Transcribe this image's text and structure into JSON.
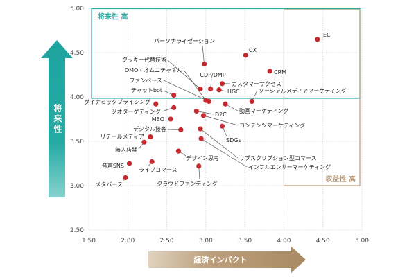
{
  "chart_data": {
    "type": "scatter",
    "xlabel": "経済インパクト",
    "ylabel": "将来性",
    "xlim": [
      1.5,
      5.0
    ],
    "ylim": [
      2.5,
      5.0
    ],
    "x_ticks": [
      "1.50",
      "2.00",
      "2.50",
      "3.00",
      "3.50",
      "4.00",
      "4.50",
      "5.00"
    ],
    "y_ticks": [
      "2.50",
      "3.00",
      "3.50",
      "4.00",
      "4.50",
      "5.00"
    ],
    "grid": true,
    "point_color": "#c62a2f",
    "regions": [
      {
        "label": "将来性 高",
        "x": [
          1.5,
          5.0
        ],
        "y": [
          4.0,
          5.0
        ],
        "color": "#2aa9a3"
      },
      {
        "label": "収益性 高",
        "x": [
          4.0,
          5.0
        ],
        "y": [
          3.0,
          5.0
        ],
        "color": "#b89b78"
      }
    ],
    "points": [
      {
        "label": "EC",
        "x": 4.43,
        "y": 4.65
      },
      {
        "label": "CX",
        "x": 3.51,
        "y": 4.47
      },
      {
        "label": "パーソナライゼーション",
        "x": 2.98,
        "y": 4.37
      },
      {
        "label": "CRM",
        "x": 3.82,
        "y": 4.29
      },
      {
        "label": "クッキー代替技術",
        "x": 2.93,
        "y": 4.09
      },
      {
        "label": "CDP/DMP",
        "x": 3.06,
        "y": 4.09
      },
      {
        "label": "カスタマーサクセス",
        "x": 3.21,
        "y": 4.15
      },
      {
        "label": "OMO・オムニチャネル",
        "x": 3.0,
        "y": 3.96
      },
      {
        "label": "UGC",
        "x": 3.17,
        "y": 4.08
      },
      {
        "label": "ファンベース",
        "x": 3.04,
        "y": 3.95
      },
      {
        "label": "ソーシャルメディアマーケティング",
        "x": 3.59,
        "y": 3.95
      },
      {
        "label": "チャットbot",
        "x": 2.59,
        "y": 4.02
      },
      {
        "label": "ダイナミックプライシング",
        "x": 2.36,
        "y": 3.92
      },
      {
        "label": "D2C",
        "x": 2.88,
        "y": 3.84
      },
      {
        "label": "動画マーケティング",
        "x": 3.25,
        "y": 3.92
      },
      {
        "label": "ジオターゲティング",
        "x": 2.59,
        "y": 3.88
      },
      {
        "label": "コンテンツマーケティング",
        "x": 2.97,
        "y": 3.79
      },
      {
        "label": "MEO",
        "x": 2.55,
        "y": 3.75
      },
      {
        "label": "デジタル接客",
        "x": 2.68,
        "y": 3.63
      },
      {
        "label": "SDGs",
        "x": 3.21,
        "y": 3.67
      },
      {
        "label": "リテールメディア",
        "x": 2.29,
        "y": 3.55
      },
      {
        "label": "無人店舗",
        "x": 2.21,
        "y": 3.49
      },
      {
        "label": "デザイン思考",
        "x": 2.65,
        "y": 3.39
      },
      {
        "label": "サブスクリプション型コマース",
        "x": 2.93,
        "y": 3.64
      },
      {
        "label": "音声SNS",
        "x": 2.02,
        "y": 3.25
      },
      {
        "label": "ライブコマース",
        "x": 2.31,
        "y": 3.27
      },
      {
        "label": "インフルエンサーマーケティング",
        "x": 2.94,
        "y": 3.53
      },
      {
        "label": "メタバース",
        "x": 1.97,
        "y": 3.09
      },
      {
        "label": "クラウドファンディング",
        "x": 2.91,
        "y": 3.22
      }
    ]
  }
}
